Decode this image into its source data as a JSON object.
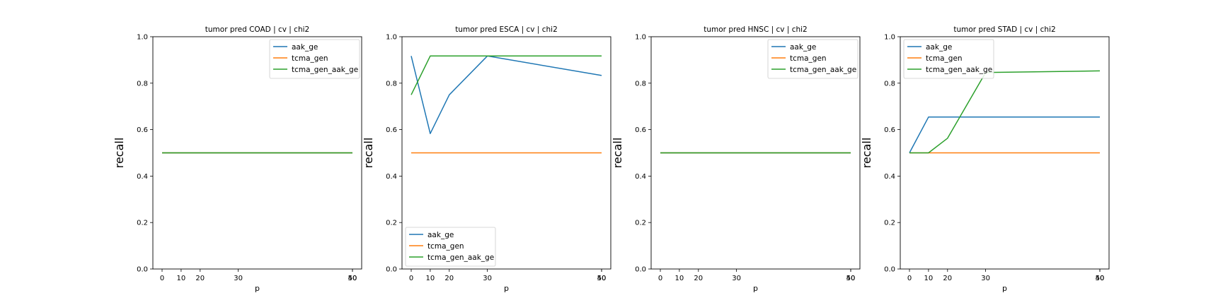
{
  "chart_data": [
    {
      "type": "line",
      "title": "tumor pred COAD | cv | chi2",
      "xlabel": "p",
      "ylabel": "recall",
      "ylim": [
        0,
        1
      ],
      "yticks": [
        "0.0",
        "0.2",
        "0.4",
        "0.6",
        "0.8",
        "1.0"
      ],
      "xticks": [
        "0",
        "10",
        "20",
        "30",
        "40",
        "50"
      ],
      "legend_position": "upper right",
      "x": [
        0,
        5,
        10,
        20,
        50
      ],
      "series": [
        {
          "name": "aak_ge",
          "color": "#1f77b4",
          "values": [
            0.5,
            0.5,
            0.5,
            0.5,
            0.5
          ]
        },
        {
          "name": "tcma_gen",
          "color": "#ff7f0e",
          "values": [
            0.5,
            0.5,
            0.5,
            0.5,
            0.5
          ]
        },
        {
          "name": "tcma_gen_aak_ge",
          "color": "#2ca02c",
          "values": [
            0.5,
            0.5,
            0.5,
            0.5,
            0.5
          ]
        }
      ]
    },
    {
      "type": "line",
      "title": "tumor pred ESCA | cv | chi2",
      "xlabel": "p",
      "ylabel": "recall",
      "ylim": [
        0,
        1
      ],
      "yticks": [
        "0.0",
        "0.2",
        "0.4",
        "0.6",
        "0.8",
        "1.0"
      ],
      "xticks": [
        "0",
        "10",
        "20",
        "30",
        "40",
        "50"
      ],
      "legend_position": "lower left",
      "x": [
        0,
        5,
        10,
        20,
        50
      ],
      "series": [
        {
          "name": "aak_ge",
          "color": "#1f77b4",
          "values": [
            0.917,
            0.583,
            0.75,
            0.917,
            0.833
          ]
        },
        {
          "name": "tcma_gen",
          "color": "#ff7f0e",
          "values": [
            0.5,
            0.5,
            0.5,
            0.5,
            0.5
          ]
        },
        {
          "name": "tcma_gen_aak_ge",
          "color": "#2ca02c",
          "values": [
            0.75,
            0.917,
            0.917,
            0.917,
            0.917
          ]
        }
      ]
    },
    {
      "type": "line",
      "title": "tumor pred HNSC | cv | chi2",
      "xlabel": "p",
      "ylabel": "recall",
      "ylim": [
        0,
        1
      ],
      "yticks": [
        "0.0",
        "0.2",
        "0.4",
        "0.6",
        "0.8",
        "1.0"
      ],
      "xticks": [
        "0",
        "10",
        "20",
        "30",
        "40",
        "50"
      ],
      "legend_position": "upper right",
      "x": [
        0,
        5,
        10,
        20,
        50
      ],
      "series": [
        {
          "name": "aak_ge",
          "color": "#1f77b4",
          "values": [
            0.5,
            0.5,
            0.5,
            0.5,
            0.5
          ]
        },
        {
          "name": "tcma_gen",
          "color": "#ff7f0e",
          "values": [
            0.5,
            0.5,
            0.5,
            0.5,
            0.5
          ]
        },
        {
          "name": "tcma_gen_aak_ge",
          "color": "#2ca02c",
          "values": [
            0.5,
            0.5,
            0.5,
            0.5,
            0.5
          ]
        }
      ]
    },
    {
      "type": "line",
      "title": "tumor pred STAD | cv | chi2",
      "xlabel": "p",
      "ylabel": "recall",
      "ylim": [
        0,
        1
      ],
      "yticks": [
        "0.0",
        "0.2",
        "0.4",
        "0.6",
        "0.8",
        "1.0"
      ],
      "xticks": [
        "0",
        "10",
        "20",
        "30",
        "40",
        "50"
      ],
      "legend_position": "upper left",
      "x": [
        0,
        5,
        10,
        20,
        50
      ],
      "series": [
        {
          "name": "aak_ge",
          "color": "#1f77b4",
          "values": [
            0.5,
            0.654,
            0.654,
            0.654,
            0.654
          ]
        },
        {
          "name": "tcma_gen",
          "color": "#ff7f0e",
          "values": [
            0.5,
            0.5,
            0.5,
            0.5,
            0.5
          ]
        },
        {
          "name": "tcma_gen_aak_ge",
          "color": "#2ca02c",
          "values": [
            0.5,
            0.5,
            0.563,
            0.846,
            0.853
          ]
        }
      ]
    }
  ]
}
